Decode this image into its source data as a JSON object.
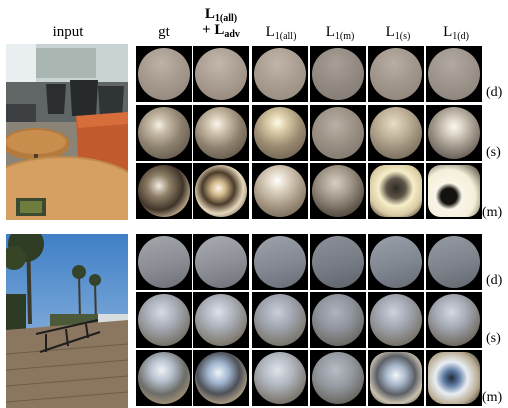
{
  "headers": {
    "input": "input",
    "gt": "gt",
    "combined_line1_main": "L",
    "combined_line1_sub": "1(all)",
    "combined_line2_prefix": "+ L",
    "combined_line2_sub": "adv",
    "l1_main": "L",
    "l1_all_sub": "1(all)",
    "l1_m_sub": "1(m)",
    "l1_s_sub": "1(s)",
    "l1_d_sub": "1(d)"
  },
  "row_labels": [
    "(d)",
    "(s)",
    "(m)",
    "(d)",
    "(s)",
    "(m)"
  ],
  "colors": {
    "indoor_diffuse": "#a69a8f",
    "outdoor_diffuse": "#8a8d94",
    "cell_background": "#000000"
  }
}
